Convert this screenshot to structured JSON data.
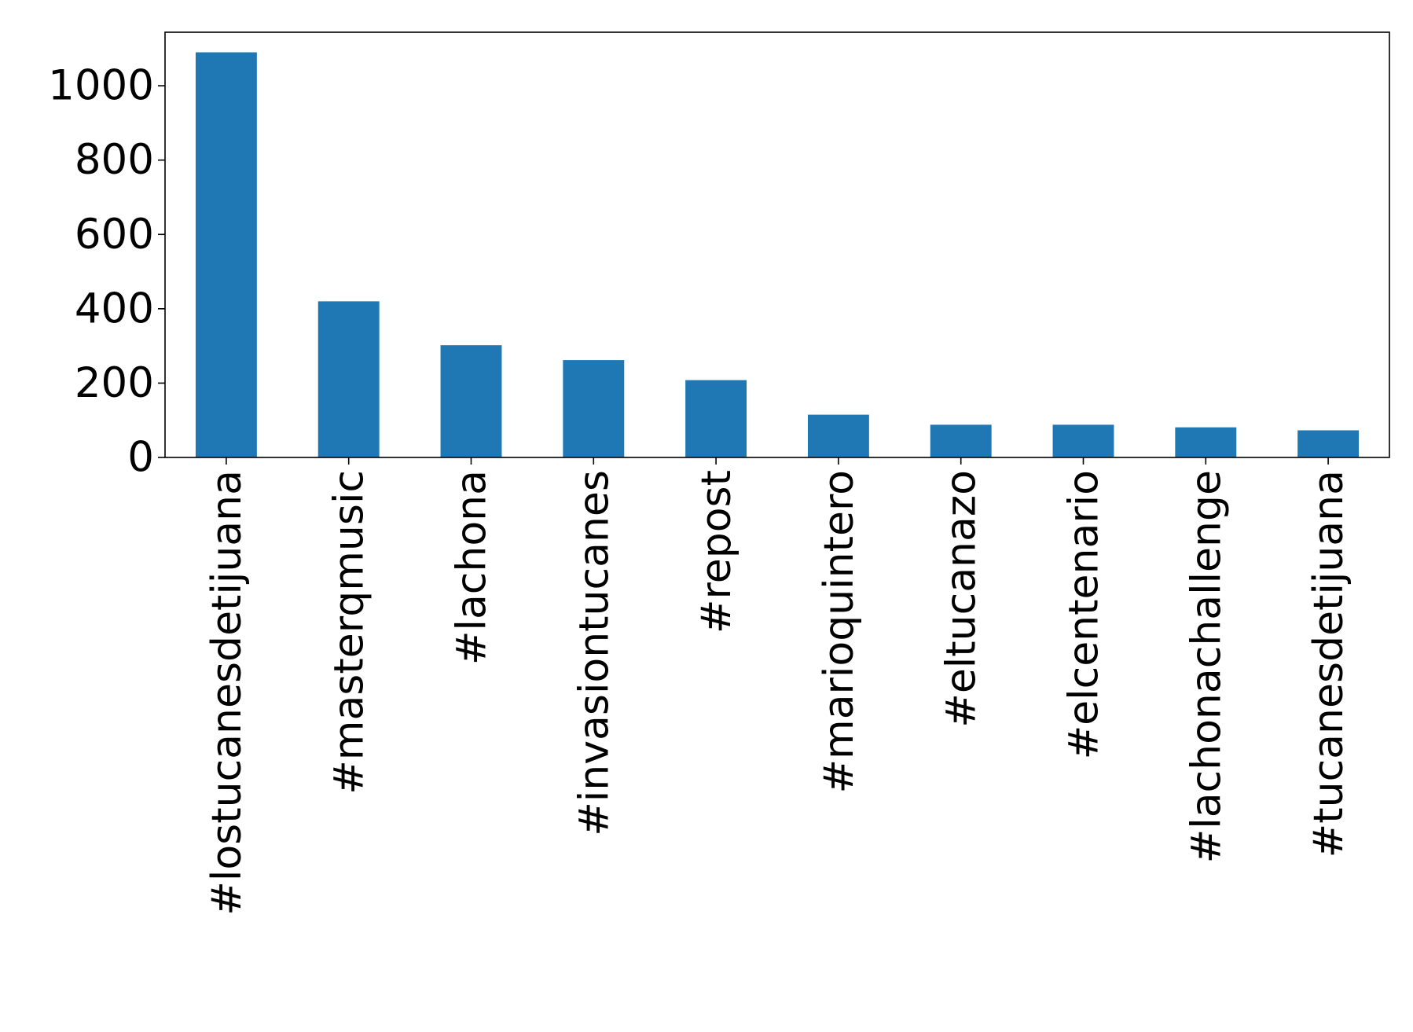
{
  "chart_data": {
    "type": "bar",
    "title": "",
    "xlabel": "",
    "ylabel": "",
    "categories": [
      "#lostucanesdetijuana",
      "#masterqmusic",
      "#lachona",
      "#invasiontucanes",
      "#repost",
      "#marioquintero",
      "#eltucanazo",
      "#elcentenario",
      "#lachonachallenge",
      "#tucanesdetijuana"
    ],
    "values": [
      1090,
      420,
      302,
      262,
      208,
      115,
      88,
      88,
      81,
      73
    ],
    "ylim": [
      0,
      1144
    ],
    "yticks": [
      0,
      200,
      400,
      600,
      800,
      1000
    ],
    "ytick_labels": [
      "0",
      "200",
      "400",
      "600",
      "800",
      "1000"
    ],
    "bar_color": "#1f77b4",
    "grid": false,
    "legend": "none"
  }
}
